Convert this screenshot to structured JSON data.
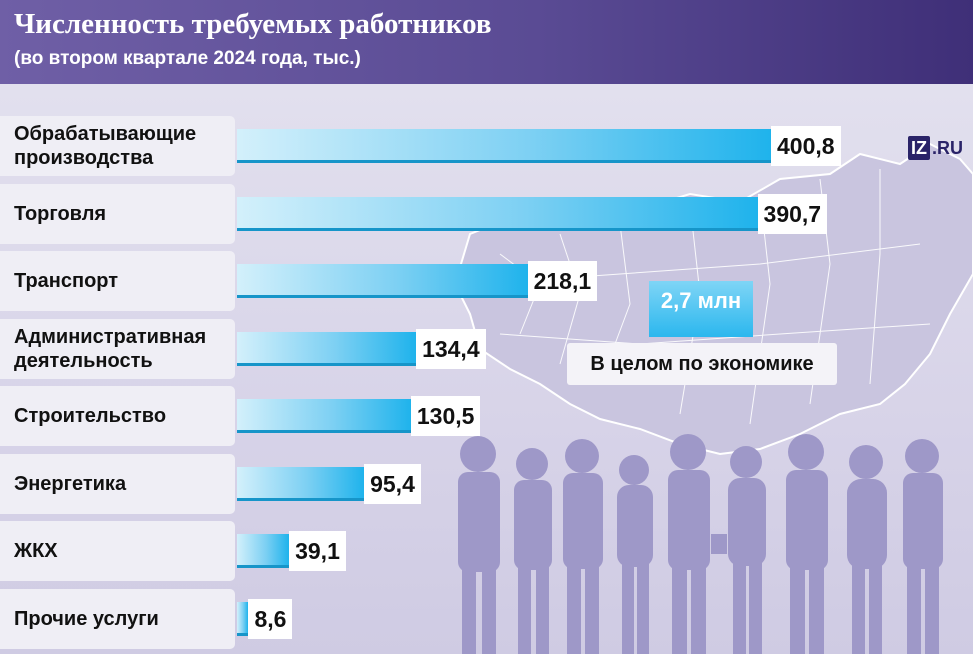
{
  "header": {
    "title": "Численность требуемых работников",
    "subtitle": "(во втором квартале 2024 года, тыс.)"
  },
  "logo": {
    "box": "IZ",
    "suffix": ".RU"
  },
  "total": {
    "value": "2,7 млн",
    "label": "В целом по экономике"
  },
  "colors": {
    "header": "#5a4b94",
    "bar_light": "#d3f0fb",
    "bar_dark": "#1fb3ec",
    "silhouette": "#9e98c8"
  },
  "chart_data": {
    "type": "bar",
    "orientation": "horizontal",
    "title": "Численность требуемых работников",
    "subtitle": "(во втором квартале 2024 года, тыс.)",
    "xlabel": "",
    "ylabel": "",
    "xlim": [
      0,
      400.8
    ],
    "grid": false,
    "categories": [
      [
        "Обрабатывающие",
        "производства"
      ],
      [
        "Торговля"
      ],
      [
        "Транспорт"
      ],
      [
        "Административная",
        "деятельность"
      ],
      [
        "Строительство"
      ],
      [
        "Энергетика"
      ],
      [
        "ЖКХ"
      ],
      [
        "Прочие услуги"
      ]
    ],
    "values": [
      400.8,
      390.7,
      218.1,
      134.4,
      130.5,
      95.4,
      39.1,
      8.6
    ],
    "value_labels": [
      "400,8",
      "390,7",
      "218,1",
      "134,4",
      "130,5",
      "95,4",
      "39,1",
      "8,6"
    ]
  }
}
